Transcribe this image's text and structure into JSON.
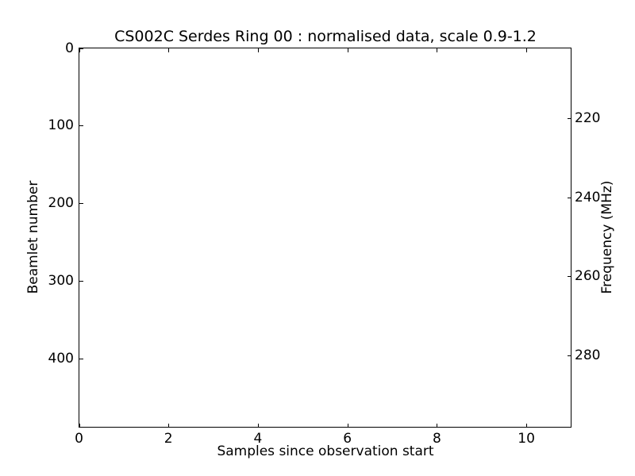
{
  "figure": {
    "background": "#ffffff",
    "axis_color": "#000000",
    "text_color": "#000000"
  },
  "chart_data": {
    "type": "heatmap",
    "title": "CS002C Serdes Ring 00 : normalised data, scale 0.9-1.2",
    "xlabel": "Samples since observation start",
    "ylabel": "Beamlet number",
    "ylabel_right": "Frequency (MHz)",
    "xlim": [
      0,
      11
    ],
    "ylim": [
      0,
      488
    ],
    "y_inverted": true,
    "ylim_right": [
      202.2,
      298.2
    ],
    "xticks": [
      0,
      2,
      4,
      6,
      8,
      10
    ],
    "yticks": [
      0,
      100,
      200,
      300,
      400
    ],
    "yticks_right": [
      220,
      240,
      260,
      280
    ],
    "tick_direction": "in",
    "grid": false,
    "legend": false,
    "color_scale": [
      0.9,
      1.2
    ],
    "values": [],
    "plot_background": "#ffffff"
  }
}
